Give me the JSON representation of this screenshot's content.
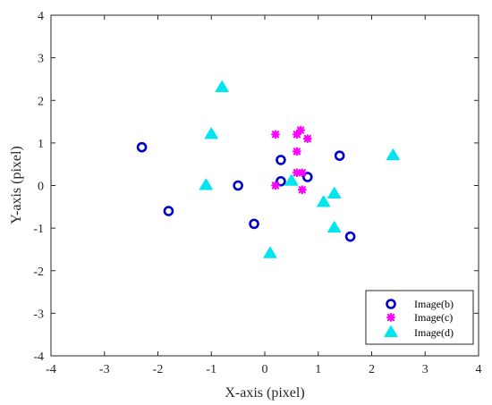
{
  "chart_data": {
    "type": "scatter",
    "title": "",
    "xlabel": "X-axis (pixel)",
    "ylabel": "Y-axis (pixel)",
    "xlim": [
      -4,
      4
    ],
    "ylim": [
      -4,
      4
    ],
    "xticks": [
      -4,
      -3,
      -2,
      -1,
      0,
      1,
      2,
      3,
      4
    ],
    "yticks": [
      -4,
      -3,
      -2,
      -1,
      0,
      1,
      2,
      3,
      4
    ],
    "grid": false,
    "legend_position": "bottom-right",
    "series": [
      {
        "name": "Image(b)",
        "marker": "circle",
        "color": "#0000cc",
        "points": [
          [
            -2.3,
            0.9
          ],
          [
            -1.8,
            -0.6
          ],
          [
            -0.5,
            0.0
          ],
          [
            -0.2,
            -0.9
          ],
          [
            0.3,
            0.6
          ],
          [
            0.3,
            0.1
          ],
          [
            0.8,
            0.2
          ],
          [
            1.4,
            0.7
          ],
          [
            1.6,
            -1.2
          ]
        ]
      },
      {
        "name": "Image(c)",
        "marker": "asterisk",
        "color": "#ff00ff",
        "points": [
          [
            0.2,
            1.2
          ],
          [
            0.2,
            0.0
          ],
          [
            0.6,
            1.2
          ],
          [
            0.67,
            1.3
          ],
          [
            0.8,
            1.1
          ],
          [
            0.6,
            0.8
          ],
          [
            0.6,
            0.3
          ],
          [
            0.7,
            0.3
          ],
          [
            0.7,
            -0.1
          ]
        ]
      },
      {
        "name": "Image(d)",
        "marker": "triangle",
        "color": "#00e5ee",
        "points": [
          [
            -0.8,
            2.3
          ],
          [
            -1.0,
            1.2
          ],
          [
            -1.1,
            0.0
          ],
          [
            0.1,
            -1.6
          ],
          [
            0.5,
            0.1
          ],
          [
            1.1,
            -0.4
          ],
          [
            1.3,
            -0.2
          ],
          [
            1.3,
            -1.0
          ],
          [
            2.4,
            0.7
          ]
        ]
      }
    ]
  }
}
